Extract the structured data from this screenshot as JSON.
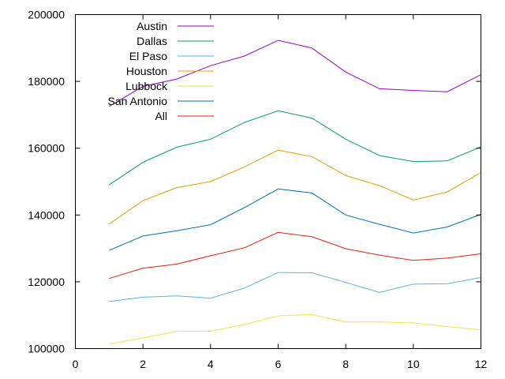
{
  "chart_data": {
    "type": "line",
    "title": "",
    "xlabel": "",
    "ylabel": "",
    "xlim": [
      0,
      12
    ],
    "ylim": [
      100000,
      200000
    ],
    "x_ticks": [
      0,
      2,
      4,
      6,
      8,
      10,
      12
    ],
    "y_ticks": [
      100000,
      120000,
      140000,
      160000,
      180000,
      200000
    ],
    "x_tick_labels": [
      "0",
      "2",
      "4",
      "6",
      "8",
      "10",
      "12"
    ],
    "y_tick_labels": [
      "100000",
      "120000",
      "140000",
      "160000",
      "180000",
      "200000"
    ],
    "grid": false,
    "legend_position": "top-left",
    "x": [
      1,
      2,
      3,
      4,
      5,
      6,
      7,
      8,
      9,
      10,
      11,
      12
    ],
    "series": [
      {
        "name": "Austin",
        "color": "#9400d3",
        "values": [
          172500,
          178500,
          180700,
          184700,
          187600,
          192300,
          190000,
          182800,
          177800,
          177300,
          176900,
          182000
        ]
      },
      {
        "name": "Dallas",
        "color": "#009e73",
        "values": [
          149000,
          155800,
          160300,
          162700,
          167700,
          171200,
          169000,
          162700,
          157800,
          156000,
          156200,
          160400
        ]
      },
      {
        "name": "El Paso",
        "color": "#56b4e9",
        "values": [
          114100,
          115400,
          115800,
          115100,
          118100,
          122800,
          122700,
          119800,
          116800,
          119300,
          119400,
          121300
        ]
      },
      {
        "name": "Houston",
        "color": "#e69f00",
        "values": [
          137300,
          144300,
          148200,
          150000,
          154400,
          159400,
          157500,
          151800,
          148800,
          144500,
          146900,
          152700
        ]
      },
      {
        "name": "Lubbock",
        "color": "#f0e442",
        "values": [
          101400,
          103200,
          105200,
          105200,
          107200,
          109800,
          110200,
          108000,
          108000,
          107700,
          106600,
          105600
        ]
      },
      {
        "name": "San Antonio",
        "color": "#0072b2",
        "values": [
          129400,
          133700,
          135300,
          137100,
          142200,
          147800,
          146600,
          140000,
          137200,
          134600,
          136400,
          140200
        ]
      },
      {
        "name": "All",
        "color": "#e51e10",
        "values": [
          121000,
          124100,
          125300,
          127800,
          130200,
          134800,
          133500,
          129900,
          128000,
          126400,
          127100,
          128400
        ]
      }
    ]
  }
}
